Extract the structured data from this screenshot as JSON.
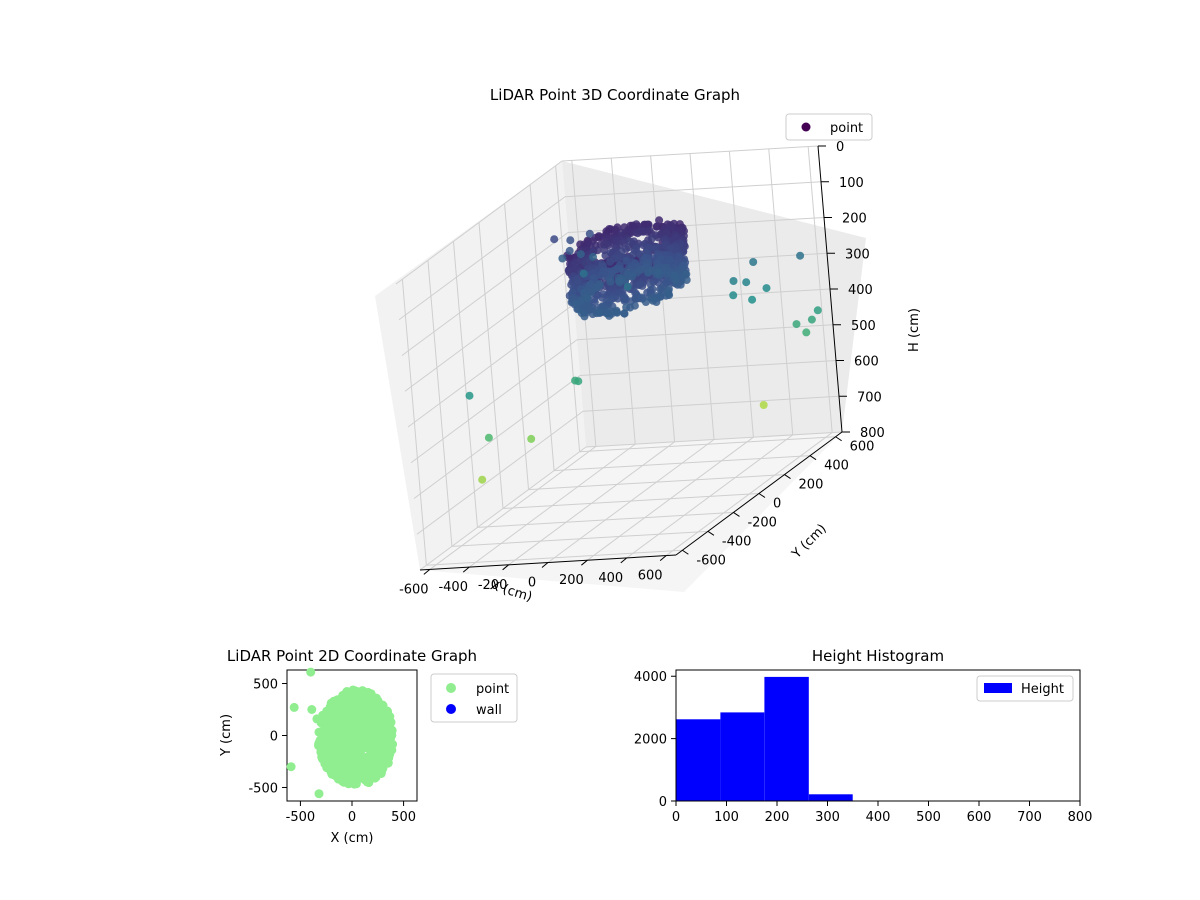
{
  "chart_data": [
    {
      "type": "scatter3d",
      "title": "LiDAR Point 3D Coordinate Graph",
      "xlabel": "X (cm)",
      "ylabel": "Y (cm)",
      "zlabel": "H (cm)",
      "xlim": [
        -650,
        650
      ],
      "ylim": [
        -650,
        650
      ],
      "zlim": [
        0,
        800
      ],
      "x_ticks": [
        -600,
        -400,
        -200,
        0,
        200,
        400,
        600
      ],
      "y_ticks": [
        -600,
        -400,
        -200,
        0,
        200,
        400,
        600
      ],
      "z_ticks": [
        0,
        100,
        200,
        300,
        400,
        500,
        600,
        700,
        800
      ],
      "zaxis_inverted": true,
      "colormap": "viridis",
      "legend": {
        "labels": [
          "point"
        ],
        "position": "upper-right"
      },
      "grid": true,
      "series": [
        {
          "name": "point",
          "description_of_structure": "ring of points",
          "ring_radius": 400,
          "height_range": [
            90,
            240
          ],
          "outliers": [
            [
              -640,
              -150,
              680
            ],
            [
              -600,
              -250,
              420
            ],
            [
              -520,
              -250,
              540
            ],
            [
              -560,
              120,
              640
            ],
            [
              -300,
              100,
              480
            ],
            [
              -250,
              50,
              470
            ],
            [
              -100,
              300,
              150
            ],
            [
              -200,
              400,
              300
            ],
            [
              -620,
              500,
              180
            ],
            [
              -600,
              520,
              240
            ],
            [
              -580,
              560,
              200
            ],
            [
              -560,
              600,
              250
            ],
            [
              -540,
              580,
              300
            ],
            [
              -520,
              620,
              200
            ],
            [
              -500,
              600,
              260
            ],
            [
              -560,
              520,
              220
            ],
            [
              200,
              600,
              350
            ],
            [
              220,
              560,
              380
            ],
            [
              250,
              620,
              360
            ],
            [
              300,
              580,
              400
            ],
            [
              350,
              620,
              380
            ],
            [
              280,
              640,
              310
            ],
            [
              500,
              600,
              480
            ],
            [
              520,
              640,
              300
            ],
            [
              560,
              580,
              500
            ],
            [
              600,
              620,
              450
            ],
            [
              580,
              600,
              470
            ],
            [
              300,
              600,
              700
            ]
          ]
        }
      ]
    },
    {
      "type": "scatter",
      "title": "LiDAR Point 2D Coordinate Graph",
      "xlabel": "X (cm)",
      "ylabel": "Y (cm)",
      "xlim": [
        -630,
        630
      ],
      "ylim": [
        -630,
        630
      ],
      "x_ticks": [
        -500,
        0,
        500
      ],
      "y_ticks": [
        -500,
        0,
        500
      ],
      "legend": {
        "labels": [
          "point",
          "wall"
        ],
        "position": "outside-right"
      },
      "colors": {
        "point": "#90ee90",
        "wall": "#0000ff"
      },
      "series": [
        {
          "name": "point",
          "description_of_structure": "dense cloud filling a rounded region",
          "outliers": [
            [
              -400,
              610
            ],
            [
              -560,
              270
            ],
            [
              -590,
              -300
            ],
            [
              -320,
              -560
            ],
            [
              -340,
              160
            ],
            [
              -390,
              250
            ]
          ]
        },
        {
          "name": "wall",
          "values": []
        }
      ]
    },
    {
      "type": "bar",
      "title": "Height Histogram",
      "xlabel": "",
      "ylabel": "",
      "xlim": [
        0,
        800
      ],
      "ylim": [
        0,
        4200
      ],
      "x_ticks": [
        0,
        100,
        200,
        300,
        400,
        500,
        600,
        700,
        800
      ],
      "y_ticks": [
        0,
        2000,
        4000
      ],
      "legend": {
        "labels": [
          "Height"
        ],
        "position": "upper-right"
      },
      "color": "#0000ff",
      "bin_edges": [
        0,
        88,
        175,
        263,
        350,
        438,
        525,
        613,
        700,
        788
      ],
      "counts": [
        2620,
        2840,
        3980,
        215,
        0,
        0,
        0,
        0,
        0
      ]
    }
  ]
}
